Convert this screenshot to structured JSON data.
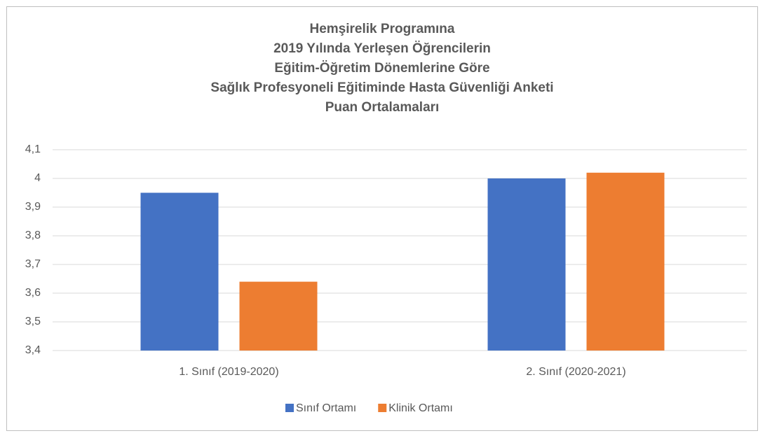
{
  "chart_data": {
    "type": "bar",
    "title": [
      "Hemşirelik Programına",
      "2019 Yılında Yerleşen Öğrencilerin",
      "Eğitim-Öğretim Dönemlerine Göre",
      "Sağlık Profesyoneli Eğitiminde Hasta Güvenliği Anketi",
      "Puan Ortalamaları"
    ],
    "categories": [
      "1. Sınıf (2019-2020)",
      "2. Sınıf (2020-2021)"
    ],
    "series": [
      {
        "name": "Sınıf Ortamı",
        "color": "#4472c4",
        "values": [
          3.95,
          4.0
        ]
      },
      {
        "name": "Klinik Ortamı",
        "color": "#ed7d31",
        "values": [
          3.64,
          4.02
        ]
      }
    ],
    "ylim": [
      3.4,
      4.1
    ],
    "yticks": [
      {
        "value": 3.4,
        "label": "3,4"
      },
      {
        "value": 3.5,
        "label": "3,5"
      },
      {
        "value": 3.6,
        "label": "3,6"
      },
      {
        "value": 3.7,
        "label": "3,7"
      },
      {
        "value": 3.8,
        "label": "3,8"
      },
      {
        "value": 3.9,
        "label": "3,9"
      },
      4,
      {
        "value": 4.1,
        "label": "4,1"
      }
    ],
    "grid": true,
    "legend": "bottom"
  }
}
